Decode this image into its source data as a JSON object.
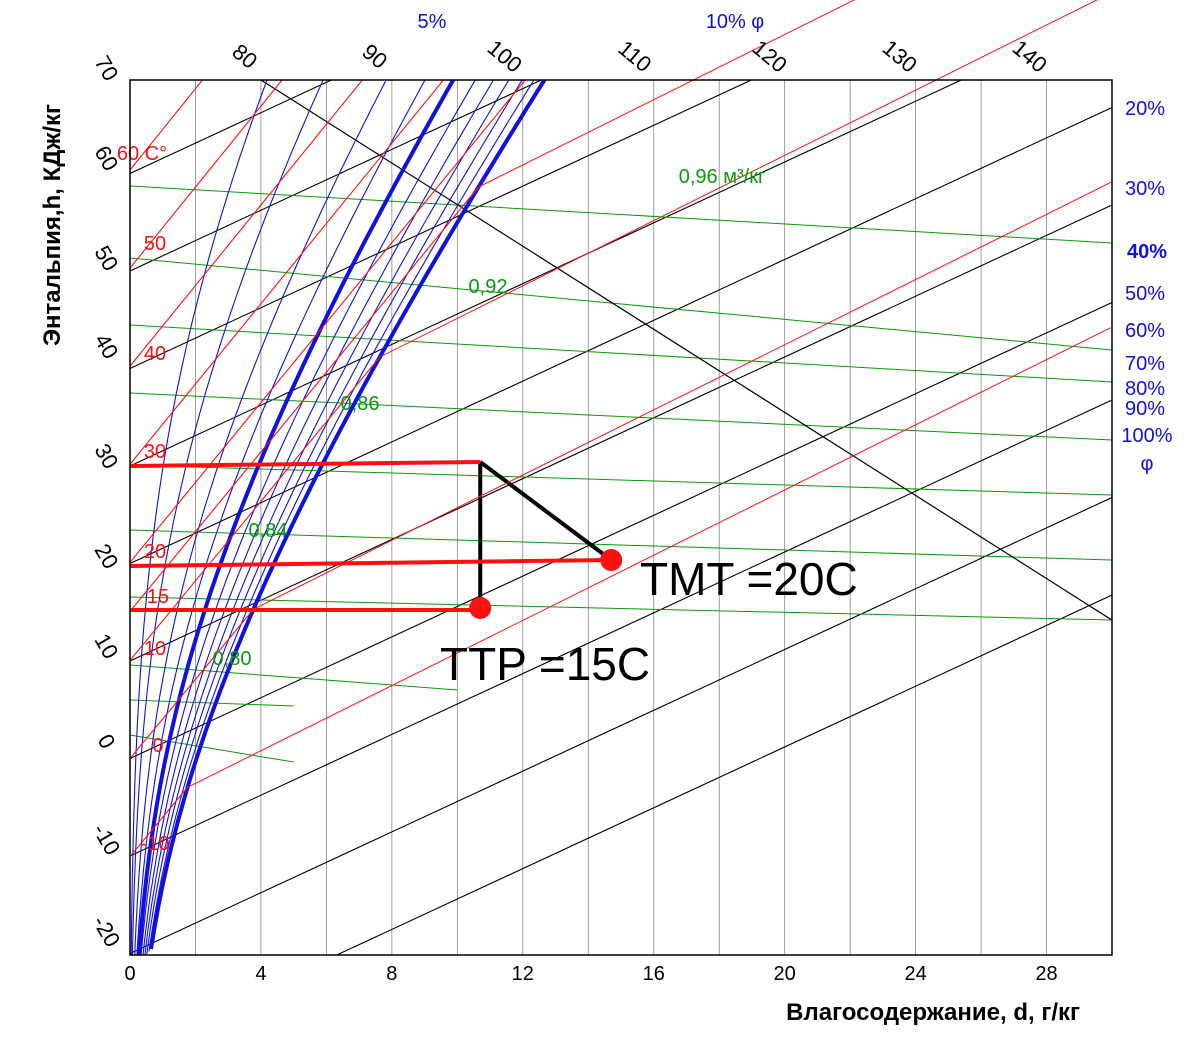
{
  "chart_data": {
    "type": "psychrometric",
    "title": "",
    "xlabel": "Влагосодержание, d, г/кг",
    "ylabel": "Энтальпия,h, КДж/кг",
    "x_range": [
      0,
      30
    ],
    "x_ticks": [
      0,
      4,
      8,
      12,
      16,
      20,
      24,
      28
    ],
    "x_tick_labels": [
      "0",
      "4",
      "8",
      "12",
      "16",
      "20",
      "24",
      "28"
    ],
    "left_h_ticks": [
      -20,
      -10,
      0,
      10,
      20,
      30,
      40,
      50,
      60,
      70
    ],
    "left_h_tick_labels": [
      "-20",
      "-10",
      "0",
      "10",
      "20",
      "30",
      "40",
      "50",
      "60",
      "70"
    ],
    "top_h_ticks": [
      80,
      90,
      100,
      110,
      120,
      130,
      140
    ],
    "top_h_tick_labels": [
      "80",
      "90",
      "100",
      "110",
      "120",
      "130",
      "140"
    ],
    "temperature_lines": [
      {
        "t": -10,
        "label": "-10"
      },
      {
        "t": 0,
        "label": "0"
      },
      {
        "t": 10,
        "label": "10"
      },
      {
        "t": 15,
        "label": "15"
      },
      {
        "t": 20,
        "label": "20"
      },
      {
        "t": 30,
        "label": "30"
      },
      {
        "t": 40,
        "label": "40"
      },
      {
        "t": 50,
        "label": "50"
      },
      {
        "t": 60,
        "label": "60 C°"
      }
    ],
    "humidity_curves": [
      {
        "phi": 5,
        "label": "5%"
      },
      {
        "phi": 10,
        "label": "10%  φ"
      },
      {
        "phi": 20,
        "label": "20%"
      },
      {
        "phi": 30,
        "label": "30%"
      },
      {
        "phi": 40,
        "label": "40%"
      },
      {
        "phi": 50,
        "label": "50%"
      },
      {
        "phi": 60,
        "label": "60%"
      },
      {
        "phi": 70,
        "label": "70%"
      },
      {
        "phi": 80,
        "label": "80%"
      },
      {
        "phi": 90,
        "label": "90%"
      },
      {
        "phi": 100,
        "label": "100%"
      }
    ],
    "phi_symbol": "φ",
    "volume_labels": [
      {
        "v": 0.8,
        "label": "0,80"
      },
      {
        "v": 0.84,
        "label": "0,84"
      },
      {
        "v": 0.86,
        "label": "0,86"
      },
      {
        "v": 0.92,
        "label": "0,92"
      },
      {
        "v": 0.96,
        "label": "0,96 м³/кг"
      }
    ],
    "process": [
      {
        "name": "state-point",
        "d": 10.7,
        "h": 30
      },
      {
        "name": "wet-bulb-point",
        "d": 14.7,
        "h": 20,
        "label": "TMT =20C"
      },
      {
        "name": "dew-point",
        "d": 10.7,
        "h": 15,
        "label": "TTP =15C"
      }
    ],
    "colors": {
      "humidity": "#1010e0",
      "temperature": "#ff1010",
      "volume": "#0a9a0a",
      "enthalpy": "#000000",
      "grid": "#888888"
    }
  }
}
